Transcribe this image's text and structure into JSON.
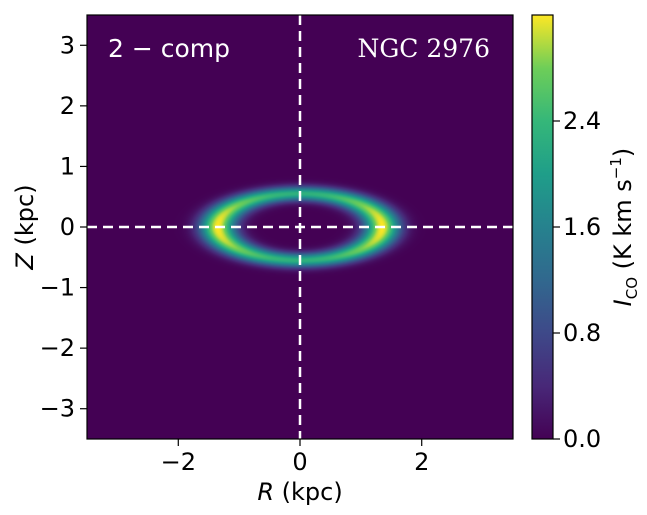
{
  "chart_data": {
    "type": "heatmap",
    "title": "",
    "xlabel": {
      "var": "R",
      "unit": " (kpc)"
    },
    "ylabel": {
      "var": "Z",
      "unit": " (kpc)"
    },
    "xlim": [
      -3.5,
      3.5
    ],
    "ylim": [
      -3.5,
      3.5
    ],
    "xticks": [
      -2,
      0,
      2
    ],
    "yticks": [
      -3,
      -2,
      -1,
      0,
      1,
      2,
      3
    ],
    "xtick_labels": [
      "−2",
      "0",
      "2"
    ],
    "ytick_labels": [
      "−3",
      "−2",
      "−1",
      "0",
      "1",
      "2",
      "3"
    ],
    "annotations": {
      "left": "2 − comp",
      "right": "NGC 2976"
    },
    "colorbar": {
      "min": 0.0,
      "max": 3.2,
      "ticks": [
        0.0,
        0.8,
        1.6,
        2.4
      ],
      "tick_labels": [
        "0.0",
        "0.8",
        "1.6",
        "2.4"
      ],
      "label_main": "I",
      "label_sub": "CO",
      "label_unit": " (K km s",
      "label_exp": "−1",
      "label_close": ")",
      "colormap": "viridis"
    },
    "ring_model": {
      "ring_radius_kpc": 1.35,
      "ring_width_kpc": 0.42,
      "vertical_scale_kpc": 0.55,
      "peak_intensity": 3.2,
      "peak_azimuth": "major axis ends (Z = 0)"
    },
    "reference_lines": {
      "x": 0,
      "y": 0,
      "style": "dashed",
      "color": "#ffffff"
    }
  }
}
